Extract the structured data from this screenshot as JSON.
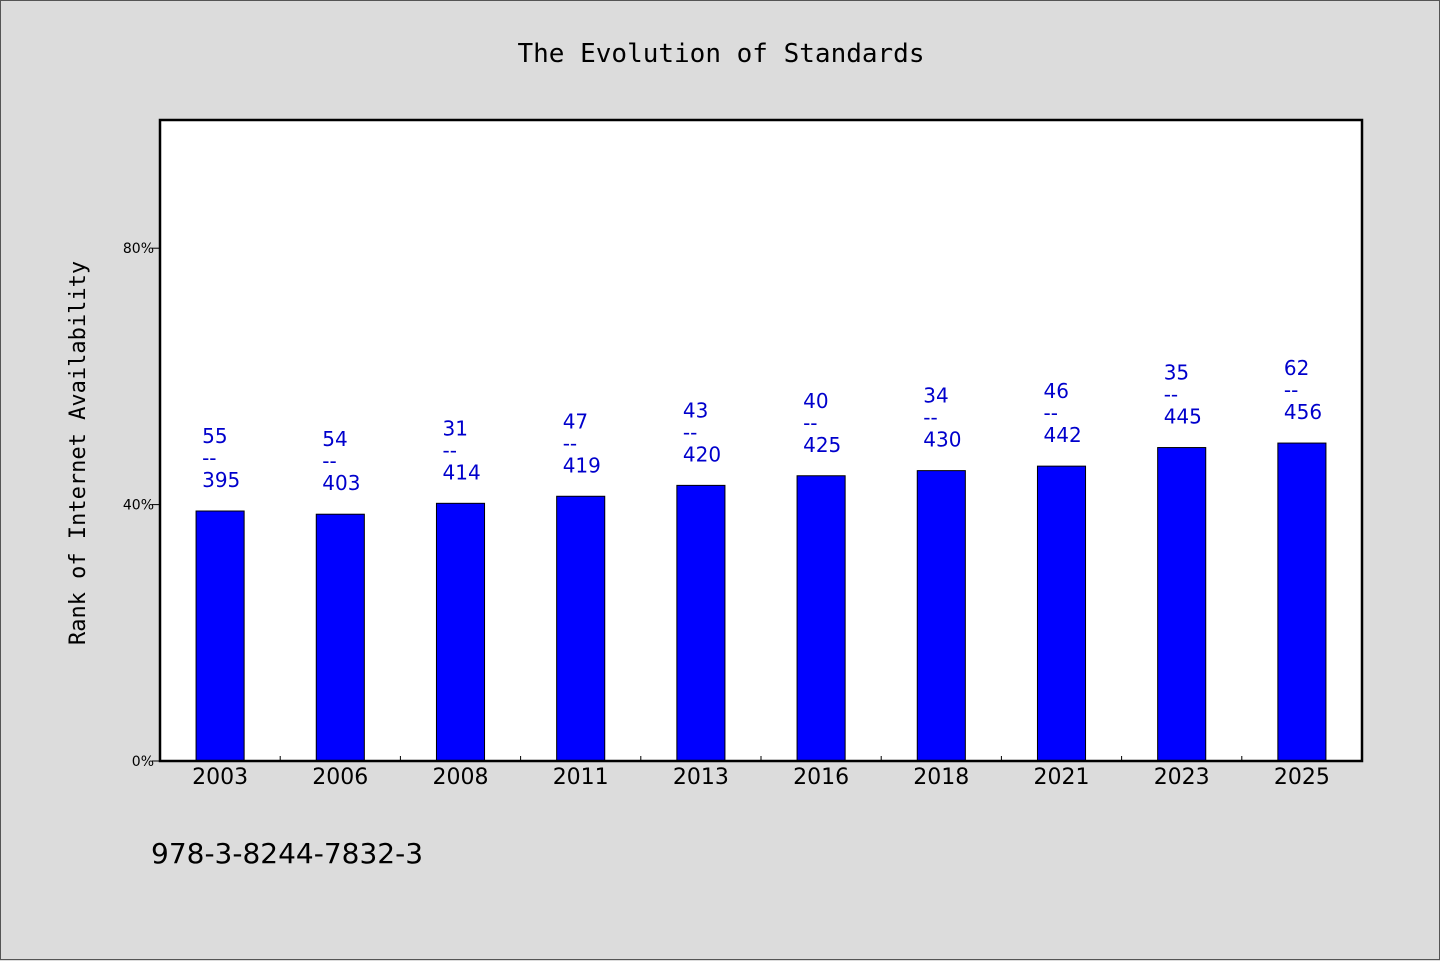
{
  "chart_data": {
    "type": "bar",
    "title": "The Evolution of Standards",
    "ylabel": "Rank of Internet Availability",
    "xlabel": "",
    "categories": [
      "2003",
      "2006",
      "2008",
      "2011",
      "2013",
      "2016",
      "2018",
      "2021",
      "2023",
      "2025"
    ],
    "values": [
      39.0,
      38.5,
      40.2,
      41.3,
      43.0,
      44.5,
      45.3,
      46.0,
      48.9,
      49.6
    ],
    "label_top": [
      "55",
      "54",
      "31",
      "47",
      "43",
      "40",
      "34",
      "46",
      "35",
      "62"
    ],
    "label_mid": [
      "--",
      "--",
      "--",
      "--",
      "--",
      "--",
      "--",
      "--",
      "--",
      "--"
    ],
    "label_bottom": [
      "395",
      "403",
      "414",
      "419",
      "420",
      "425",
      "430",
      "442",
      "445",
      "456"
    ],
    "ylim": [
      0,
      100
    ],
    "yticks": [
      0,
      40,
      80
    ],
    "ytick_labels": [
      "0%",
      "40%",
      "80%"
    ],
    "bar_color": "#0000ff",
    "label_color": "#0000cc",
    "grid": false,
    "legend": "none"
  },
  "footer": {
    "isbn": "978-3-8244-7832-3"
  }
}
